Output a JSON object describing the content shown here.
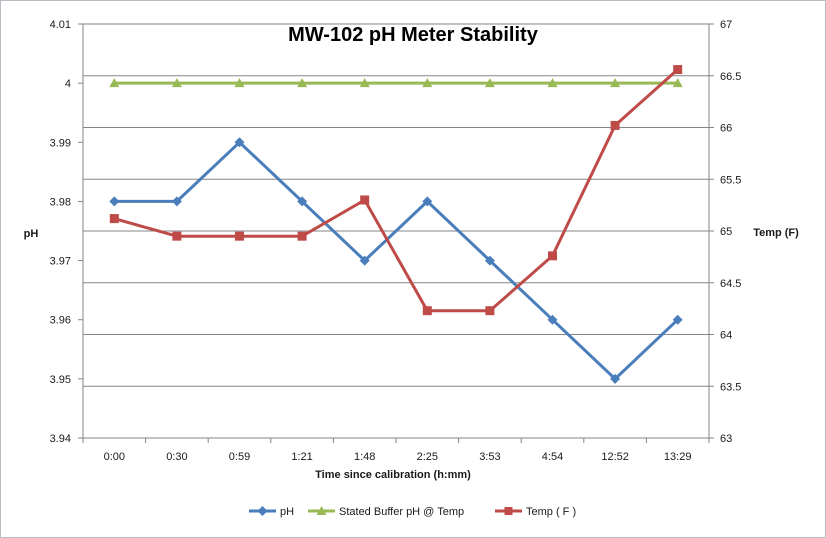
{
  "chart_data": {
    "type": "line",
    "title": "MW-102 pH Meter Stability",
    "xlabel": "Time since calibration  (h:mm)",
    "ylabel": "pH",
    "y2label": "Temp (F)",
    "categories": [
      "0:00",
      "0:30",
      "0:59",
      "1:21",
      "1:48",
      "2:25",
      "3:53",
      "4:54",
      "12:52",
      "13:29"
    ],
    "ylim": [
      3.94,
      4.01
    ],
    "yticks": [
      "3.94",
      "3.95",
      "3.96",
      "3.97",
      "3.98",
      "3.99",
      "4",
      "4.01"
    ],
    "y2lim": [
      63,
      67
    ],
    "y2ticks": [
      "63",
      "63.5",
      "64",
      "64.5",
      "65",
      "65.5",
      "66",
      "66.5",
      "67"
    ],
    "grid": true,
    "legend_position": "bottom",
    "series": [
      {
        "name": "pH",
        "axis": "left",
        "marker": "diamond",
        "color": "#4a7ebb",
        "values": [
          3.98,
          3.98,
          3.99,
          3.98,
          3.97,
          3.98,
          3.97,
          3.96,
          3.95,
          3.96
        ]
      },
      {
        "name": "Stated Buffer pH @ Temp",
        "axis": "left",
        "marker": "triangle",
        "color": "#98b954",
        "values": [
          4,
          4,
          4,
          4,
          4,
          4,
          4,
          4,
          4,
          4
        ]
      },
      {
        "name": "Temp ( F )",
        "axis": "right",
        "marker": "square",
        "color": "#be4b48",
        "values": [
          65.12,
          64.95,
          64.95,
          64.95,
          65.3,
          64.23,
          64.23,
          64.76,
          66.02,
          66.56
        ]
      }
    ]
  }
}
